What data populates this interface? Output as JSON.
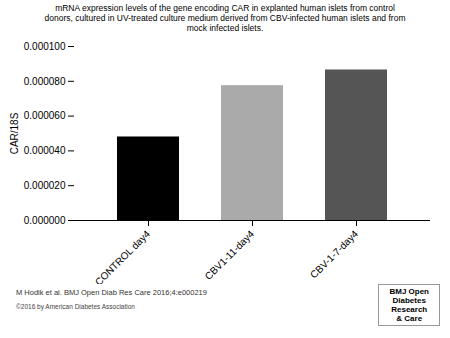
{
  "chart_data": {
    "type": "bar",
    "title": "mRNA expression levels of the gene encoding CAR in explanted human islets from control\ndonors, cultured in UV-treated culture medium derived from CBV-infected human islets and from\nmock infected islets.",
    "ylabel": "CAR/18S",
    "categories": [
      "CONTROL day4",
      "CBV1-11-day4",
      "CBV-1-7-day4"
    ],
    "values": [
      4.8e-05,
      7.75e-05,
      8.65e-05
    ],
    "colors": [
      "#000000",
      "#aaaaaa",
      "#555555"
    ],
    "ylim": [
      0,
      0.0001
    ],
    "yticks": [
      {
        "value": 0.0,
        "label": "0.000000"
      },
      {
        "value": 2e-05,
        "label": "0.000020"
      },
      {
        "value": 4e-05,
        "label": "0.000040"
      },
      {
        "value": 6e-05,
        "label": "0.000060"
      },
      {
        "value": 8e-05,
        "label": "0.000080"
      },
      {
        "value": 0.0001,
        "label": "0.000100"
      }
    ],
    "grid": false,
    "annotations": [
      "M Hodik et al. BMJ Open Diab Res Care 2016;4:e000219",
      "©2016 by American Diabetes Association",
      "BMJ Open\nDiabetes\nResearch\n& Care"
    ]
  }
}
